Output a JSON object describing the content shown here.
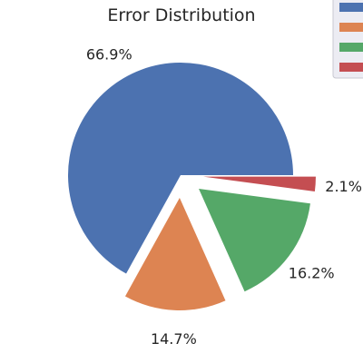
{
  "chart_data": {
    "type": "pie",
    "title": "Error Distribution",
    "slices": [
      {
        "value": 66.9,
        "label": "66.9%",
        "color": "#4c72b0",
        "explode": false
      },
      {
        "value": 14.7,
        "label": "14.7%",
        "color": "#dd8452",
        "explode": true
      },
      {
        "value": 16.2,
        "label": "16.2%",
        "color": "#55a868",
        "explode": true
      },
      {
        "value": 2.1,
        "label": "2.1%",
        "color": "#c44e52",
        "explode": true
      }
    ],
    "legend": {
      "position": "top-right",
      "entries": [
        "",
        "",
        "",
        ""
      ]
    }
  }
}
